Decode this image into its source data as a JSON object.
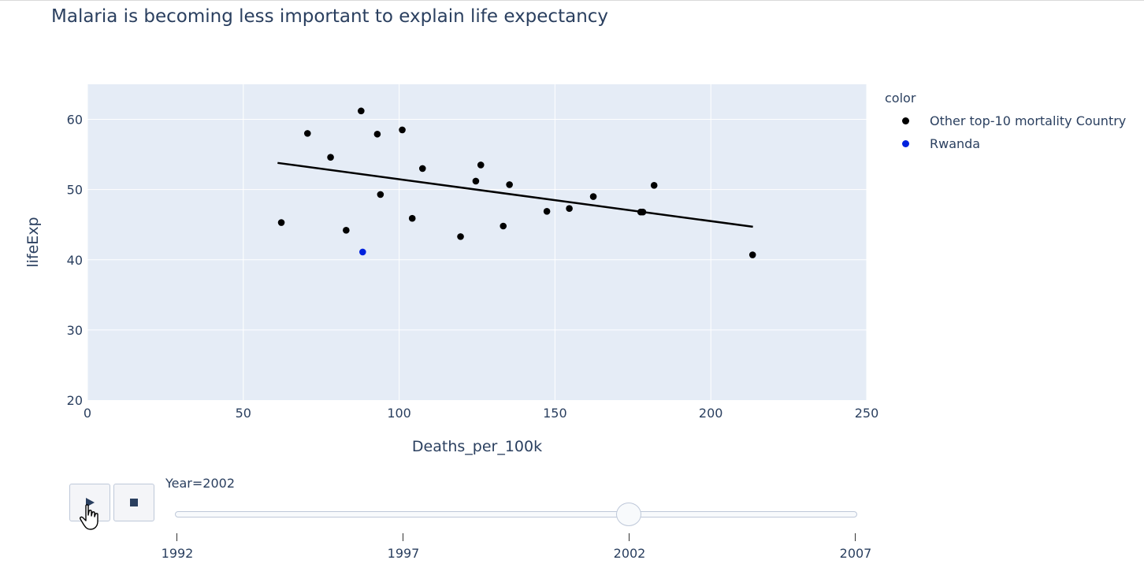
{
  "colors": {
    "plot_bg": "#e5ecf6",
    "grid": "#ffffff",
    "text": "#2a3f5f",
    "other": "#000000",
    "rwanda": "#0022dd",
    "trend": "#000000"
  },
  "controls": {
    "play_icon": "play-icon",
    "stop_icon": "stop-icon"
  },
  "slider": {
    "current_label": "Year=2002",
    "current_value": 2002,
    "steps": [
      {
        "label": "1992",
        "value": 1992
      },
      {
        "label": "1997",
        "value": 1997
      },
      {
        "label": "2002",
        "value": 2002
      },
      {
        "label": "2007",
        "value": 2007
      }
    ]
  },
  "chart_data": {
    "type": "scatter",
    "title": "Malaria is becoming less important to explain life expectancy",
    "xlabel": "Deaths_per_100k",
    "ylabel": "lifeExp",
    "xlim": [
      0,
      250
    ],
    "ylim": [
      20,
      65
    ],
    "xticks": [
      0,
      50,
      100,
      150,
      200,
      250
    ],
    "yticks": [
      20,
      30,
      40,
      50,
      60
    ],
    "grid": true,
    "legend_title": "color",
    "legend_position": "right",
    "series": [
      {
        "name": "Other top-10 mortality Country",
        "color": "#000000",
        "points": [
          [
            62.2,
            45.3
          ],
          [
            70.6,
            58.0
          ],
          [
            78.0,
            54.6
          ],
          [
            83.0,
            44.2
          ],
          [
            87.8,
            61.2
          ],
          [
            93.0,
            57.9
          ],
          [
            94.0,
            49.3
          ],
          [
            101.0,
            58.5
          ],
          [
            104.2,
            45.9
          ],
          [
            107.5,
            53.0
          ],
          [
            119.7,
            43.3
          ],
          [
            124.6,
            51.2
          ],
          [
            126.2,
            53.5
          ],
          [
            133.4,
            44.8
          ],
          [
            135.4,
            50.7
          ],
          [
            147.4,
            46.9
          ],
          [
            154.6,
            47.3
          ],
          [
            162.3,
            49.0
          ],
          [
            177.5,
            46.8
          ],
          [
            178.2,
            46.8
          ],
          [
            181.8,
            50.6
          ],
          [
            213.4,
            40.7
          ]
        ]
      },
      {
        "name": "Rwanda",
        "color": "#0022dd",
        "points": [
          [
            88.3,
            41.1
          ]
        ]
      }
    ],
    "trendline": {
      "x": [
        61.0,
        213.5
      ],
      "y": [
        53.8,
        44.7
      ]
    }
  }
}
